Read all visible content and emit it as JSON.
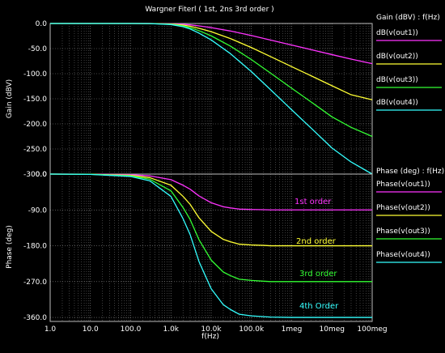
{
  "chart_data": [
    {
      "type": "line",
      "title": "Wargner Fiterl ( 1st, 2ns 3rd order )",
      "ylabel": "Gain (dBV)",
      "legend_header": "Gain (dBV) : f(Hz)",
      "xscale": "log",
      "xlim": [
        1,
        100000000
      ],
      "ylim": [
        -300,
        0
      ],
      "yticks": [
        0,
        -50,
        -100,
        -150,
        -200,
        -250,
        -300
      ],
      "ytick_labels": [
        "0.0",
        "-50.0",
        "-100.0",
        "-150.0",
        "-200.0",
        "-250.0",
        "-300.0"
      ],
      "grid": true,
      "legend_position": "right",
      "x": [
        1,
        10,
        100,
        300,
        1000,
        2000,
        3000,
        5000,
        10000,
        30000,
        100000,
        300000,
        1000000,
        3000000,
        10000000,
        30000000,
        100000000
      ],
      "series": [
        {
          "name": "dB(v(out1))",
          "color": "#ff33ff",
          "values": [
            0,
            0,
            0,
            -0.1,
            -0.6,
            -1.6,
            -2.7,
            -4.8,
            -8.2,
            -15.0,
            -24.0,
            -33.0,
            -43.0,
            -52.0,
            -62.0,
            -71.0,
            -80.0
          ]
        },
        {
          "name": "dB(v(out2))",
          "color": "#ffff33",
          "values": [
            0,
            0,
            0,
            -0.1,
            -1.0,
            -3.2,
            -5.4,
            -9.6,
            -16.4,
            -30.0,
            -48.0,
            -66.0,
            -86.0,
            -104.0,
            -124.0,
            -142.0,
            -152.0
          ]
        },
        {
          "name": "dB(v(out3))",
          "color": "#33ff33",
          "values": [
            0,
            0,
            0,
            -0.2,
            -1.6,
            -4.8,
            -8.2,
            -14.4,
            -24.6,
            -45.0,
            -72.0,
            -99.0,
            -129.0,
            -156.0,
            -186.0,
            -207.0,
            -225.0
          ]
        },
        {
          "name": "dB(v(out4))",
          "color": "#33ffff",
          "values": [
            0,
            0,
            0,
            -0.2,
            -2.1,
            -6.4,
            -10.9,
            -19.2,
            -32.8,
            -60.0,
            -96.0,
            -132.0,
            -172.0,
            -208.0,
            -248.0,
            -276.0,
            -300.0
          ]
        }
      ]
    },
    {
      "type": "line",
      "ylabel": "Phase (deg)",
      "xlabel": "f(Hz)",
      "legend_header": "Phase (deg) : f(Hz)",
      "xscale": "log",
      "xlim": [
        1,
        100000000
      ],
      "ylim": [
        -370,
        0
      ],
      "yticks": [
        0,
        -90,
        -180,
        -270,
        -360
      ],
      "ytick_labels": [
        "0.0",
        "-90.0",
        "-180.0",
        "-270.0",
        "-360.0"
      ],
      "xtick_labels": [
        "1.0",
        "10.0",
        "100.0",
        "1.0k",
        "10.0k",
        "100.0k",
        "1meg",
        "10meg",
        "100meg"
      ],
      "grid": true,
      "legend_position": "right",
      "x": [
        1,
        10,
        100,
        300,
        1000,
        2000,
        3000,
        5000,
        10000,
        20000,
        30000,
        50000,
        100000,
        200000,
        300000,
        1000000,
        10000000,
        100000000
      ],
      "series": [
        {
          "name": "Phase(v(out1))",
          "color": "#ff33ff",
          "annotation": "1st order",
          "values": [
            0,
            -0.2,
            -1.5,
            -4.5,
            -14,
            -28,
            -38,
            -55,
            -72,
            -82,
            -85,
            -88,
            -89,
            -89.5,
            -90,
            -90,
            -90,
            -90
          ]
        },
        {
          "name": "Phase(v(out2))",
          "color": "#ffff33",
          "annotation": "2nd order",
          "values": [
            0,
            -0.4,
            -3,
            -9,
            -28,
            -56,
            -76,
            -110,
            -144,
            -164,
            -170,
            -176,
            -178,
            -179,
            -180,
            -180,
            -180,
            -180
          ]
        },
        {
          "name": "Phase(v(out3))",
          "color": "#33ff33",
          "annotation": "3rd order",
          "values": [
            0,
            -0.6,
            -4.5,
            -13,
            -42,
            -84,
            -114,
            -165,
            -216,
            -246,
            -255,
            -264,
            -267,
            -269,
            -270,
            -270,
            -270,
            -270
          ]
        },
        {
          "name": "Phase(v(out4))",
          "color": "#33ffff",
          "annotation": "4th Order",
          "values": [
            0,
            -0.8,
            -6,
            -17,
            -56,
            -112,
            -152,
            -220,
            -288,
            -328,
            -340,
            -352,
            -356,
            -358,
            -359,
            -360,
            -360,
            -360
          ]
        }
      ]
    }
  ]
}
